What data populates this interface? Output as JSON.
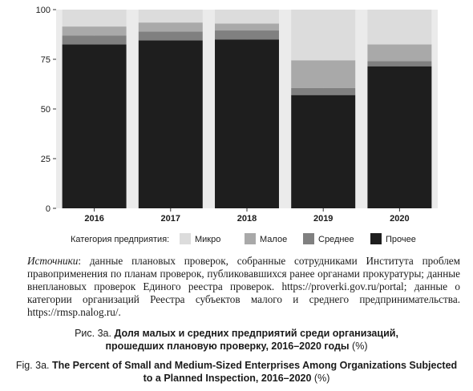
{
  "chart_data": {
    "type": "bar",
    "stacked": true,
    "categories": [
      "2016",
      "2017",
      "2018",
      "2019",
      "2020"
    ],
    "series": [
      {
        "name": "Прочее",
        "values": [
          82.5,
          84.5,
          85.0,
          57.0,
          71.5
        ]
      },
      {
        "name": "Среднее",
        "values": [
          4.5,
          4.5,
          4.5,
          3.5,
          2.5
        ]
      },
      {
        "name": "Малое",
        "values": [
          4.5,
          4.5,
          3.5,
          14.0,
          8.5
        ]
      },
      {
        "name": "Микро",
        "values": [
          8.5,
          6.5,
          7.0,
          25.5,
          17.5
        ]
      }
    ],
    "yticks": [
      0,
      25,
      50,
      75,
      100
    ],
    "ylim": [
      0,
      100
    ],
    "legend_title": "Категория предприятия:",
    "legend_order": [
      "Микро",
      "Малое",
      "Среднее",
      "Прочее"
    ],
    "legend_position": "bottom",
    "colors": {
      "Микро": "#dcdcdc",
      "Малое": "#a9a9a9",
      "Среднее": "#808080",
      "Прочее": "#1e1e1e"
    },
    "panel_background": "#ebebeb",
    "gridline_color": "#ffffff"
  },
  "source": {
    "label": "Источники",
    "text": ": данные плановых проверок, собранные сотрудниками Института проблем правоприменения по планам проверок, публиковавшихся ранее органами прокуратуры; данные внеплановых проверок Единого реестра проверок. https://proverki.gov.ru/portal; данные о категории организаций Реестра субъектов малого и среднего предпринимательства. https://rmsp.nalog.ru/."
  },
  "caption_ru": {
    "prefix": "Рис. 3а. ",
    "title_line1": "Доля малых и средних предприятий среди организаций,",
    "title_line2": "прошедших плановую проверку, 2016–2020 годы",
    "unit": " (%)"
  },
  "caption_en": {
    "prefix": "Fig. 3a. ",
    "title_line1": "The Percent of Small and Medium-Sized Enterprises Among Organizations Subjected",
    "title_line2": "to a Planned Inspection, 2016–2020",
    "unit": " (%)"
  }
}
